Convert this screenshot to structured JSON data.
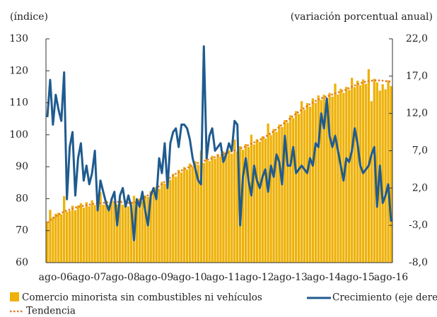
{
  "chart_data": {
    "type": "bar-line",
    "y_label": "(índice)",
    "y2_label": "(variación porcentual anual)",
    "categories": [
      null,
      null,
      null,
      "ago-06",
      null,
      null,
      null,
      null,
      null,
      null,
      null,
      null,
      null,
      null,
      null,
      "ago-07",
      null,
      null,
      null,
      null,
      null,
      null,
      null,
      null,
      null,
      null,
      null,
      "ago-08",
      null,
      null,
      null,
      null,
      null,
      null,
      null,
      null,
      null,
      null,
      null,
      "ago-09",
      null,
      null,
      null,
      null,
      null,
      null,
      null,
      null,
      null,
      null,
      null,
      "ago-10",
      null,
      null,
      null,
      null,
      null,
      null,
      null,
      null,
      null,
      null,
      null,
      "ago-11",
      null,
      null,
      null,
      null,
      null,
      null,
      null,
      null,
      null,
      null,
      null,
      "ago-12",
      null,
      null,
      null,
      null,
      null,
      null,
      null,
      null,
      null,
      null,
      null,
      "ago-13",
      null,
      null,
      null,
      null,
      null,
      null,
      null,
      null,
      null,
      null,
      null,
      "ago-14",
      null,
      null,
      null,
      null,
      null,
      null,
      null,
      null,
      null,
      null,
      null,
      "ago-15",
      null,
      null,
      null,
      null,
      null,
      null,
      null,
      null,
      null,
      null,
      null,
      "ago-16"
    ],
    "series": [
      {
        "name": "Comercio minorista sin combustibles ni vehículos",
        "kind": "bar",
        "color": "#eeb108",
        "values": [
          72.8,
          76.5,
          74.2,
          75.3,
          75.6,
          75.1,
          80.8,
          75.9,
          76.2,
          77.8,
          76.4,
          77.9,
          78.6,
          77.2,
          78.9,
          77.6,
          79.5,
          78.0,
          77.8,
          82.0,
          78.1,
          79.4,
          78.0,
          80.2,
          79.1,
          78.2,
          79.6,
          78.1,
          79.3,
          77.6,
          78.5,
          80.9,
          78.4,
          80.1,
          79.3,
          81.0,
          80.6,
          82.4,
          81.9,
          83.8,
          83.1,
          85.3,
          84.7,
          88.0,
          85.9,
          87.8,
          86.9,
          89.0,
          88.2,
          89.9,
          89.1,
          91.0,
          90.0,
          91.7,
          90.6,
          95.0,
          91.2,
          92.9,
          91.8,
          93.4,
          92.5,
          94.0,
          93.2,
          94.8,
          93.6,
          95.2,
          94.1,
          98.5,
          94.8,
          96.4,
          95.3,
          97.1,
          96.2,
          100.0,
          97.0,
          98.6,
          97.8,
          99.5,
          98.8,
          103.5,
          99.9,
          101.8,
          100.9,
          103.2,
          102.4,
          104.6,
          103.8,
          106.1,
          105.2,
          107.4,
          106.5,
          110.5,
          107.8,
          109.9,
          108.8,
          111.4,
          110.0,
          112.3,
          110.9,
          112.5,
          111.3,
          113.1,
          111.9,
          116.0,
          112.6,
          114.4,
          113.1,
          115.0,
          114.0,
          117.8,
          114.9,
          116.9,
          115.5,
          117.3,
          115.9,
          120.5,
          110.5,
          117.5,
          116.4,
          113.8,
          115.8,
          114.2,
          117.0,
          115.2
        ]
      },
      {
        "name": "Tendencia",
        "kind": "dotted",
        "color": "#e07b2a",
        "values": [
          72.5,
          73.2,
          73.9,
          74.5,
          75.0,
          75.5,
          76.0,
          76.3,
          76.6,
          76.9,
          77.2,
          77.4,
          77.6,
          77.8,
          78.0,
          78.1,
          78.3,
          78.4,
          78.5,
          78.6,
          78.7,
          78.8,
          78.9,
          79.0,
          79.0,
          79.0,
          79.0,
          78.9,
          78.8,
          78.7,
          78.7,
          78.8,
          79.0,
          79.4,
          79.9,
          80.5,
          81.1,
          81.8,
          82.5,
          83.2,
          83.9,
          84.6,
          85.3,
          86.0,
          86.6,
          87.2,
          87.8,
          88.3,
          88.8,
          89.2,
          89.6,
          90.0,
          90.4,
          90.8,
          91.2,
          91.5,
          91.8,
          92.1,
          92.4,
          92.7,
          93.0,
          93.3,
          93.6,
          93.9,
          94.2,
          94.5,
          94.8,
          95.1,
          95.4,
          95.7,
          96.0,
          96.4,
          96.8,
          97.2,
          97.6,
          98.0,
          98.4,
          98.9,
          99.4,
          99.9,
          100.5,
          101.1,
          101.7,
          102.4,
          103.1,
          103.8,
          104.5,
          105.2,
          105.9,
          106.6,
          107.2,
          107.8,
          108.4,
          109.0,
          109.6,
          110.1,
          110.6,
          111.0,
          111.4,
          111.7,
          112.0,
          112.3,
          112.6,
          112.9,
          113.2,
          113.5,
          113.8,
          114.2,
          114.6,
          115.0,
          115.4,
          115.8,
          116.1,
          116.4,
          116.6,
          116.8,
          116.9,
          117.0,
          117.0,
          117.0,
          116.9,
          116.8,
          116.7,
          116.6
        ]
      },
      {
        "name": "Crecimiento (eje derecho)",
        "kind": "line",
        "axis": "y2",
        "color": "#1f5b8f",
        "values": [
          11.5,
          16.5,
          10.5,
          14.5,
          12.5,
          11.0,
          17.5,
          0.5,
          7.5,
          9.5,
          1.0,
          6.0,
          8.0,
          3.0,
          5.0,
          2.5,
          4.0,
          7.0,
          -1.0,
          3.0,
          1.5,
          0.0,
          -1.0,
          0.5,
          1.5,
          -3.0,
          1.0,
          2.0,
          -0.5,
          1.0,
          -0.5,
          -5.0,
          0.5,
          -0.5,
          1.5,
          -1.0,
          -3.0,
          1.0,
          2.0,
          0.5,
          6.0,
          4.0,
          8.0,
          2.0,
          8.0,
          9.5,
          10.0,
          7.5,
          10.5,
          10.5,
          10.0,
          8.5,
          6.0,
          4.5,
          3.0,
          2.5,
          21.0,
          6.0,
          9.0,
          10.0,
          7.0,
          7.5,
          8.0,
          5.5,
          6.5,
          8.0,
          7.0,
          11.0,
          10.5,
          -3.0,
          3.5,
          6.0,
          3.0,
          1.0,
          5.0,
          3.0,
          2.0,
          3.5,
          4.5,
          1.5,
          5.0,
          3.5,
          6.5,
          5.5,
          2.5,
          9.0,
          5.0,
          5.0,
          7.5,
          4.0,
          4.5,
          5.0,
          4.5,
          4.0,
          6.0,
          5.0,
          8.0,
          7.5,
          12.0,
          10.0,
          14.0,
          9.0,
          7.5,
          9.0,
          7.0,
          5.0,
          3.0,
          6.0,
          5.5,
          7.0,
          10.0,
          8.0,
          5.0,
          4.0,
          4.5,
          5.0,
          6.5,
          7.5,
          -0.5,
          5.0,
          0.0,
          1.0,
          2.5,
          -2.5
        ]
      }
    ],
    "ylim": [
      60,
      130
    ],
    "yticks": [
      60,
      70,
      80,
      90,
      100,
      110,
      120,
      130
    ],
    "y2lim": [
      -8,
      22
    ],
    "y2ticks": [
      {
        "value": -8,
        "label": "-8,0"
      },
      {
        "value": -3,
        "label": "-3,0"
      },
      {
        "value": 2,
        "label": "2,0"
      },
      {
        "value": 7,
        "label": "7,0"
      },
      {
        "value": 12,
        "label": "12,0"
      },
      {
        "value": 17,
        "label": "17,0"
      },
      {
        "value": 22,
        "label": "22,0"
      }
    ]
  }
}
